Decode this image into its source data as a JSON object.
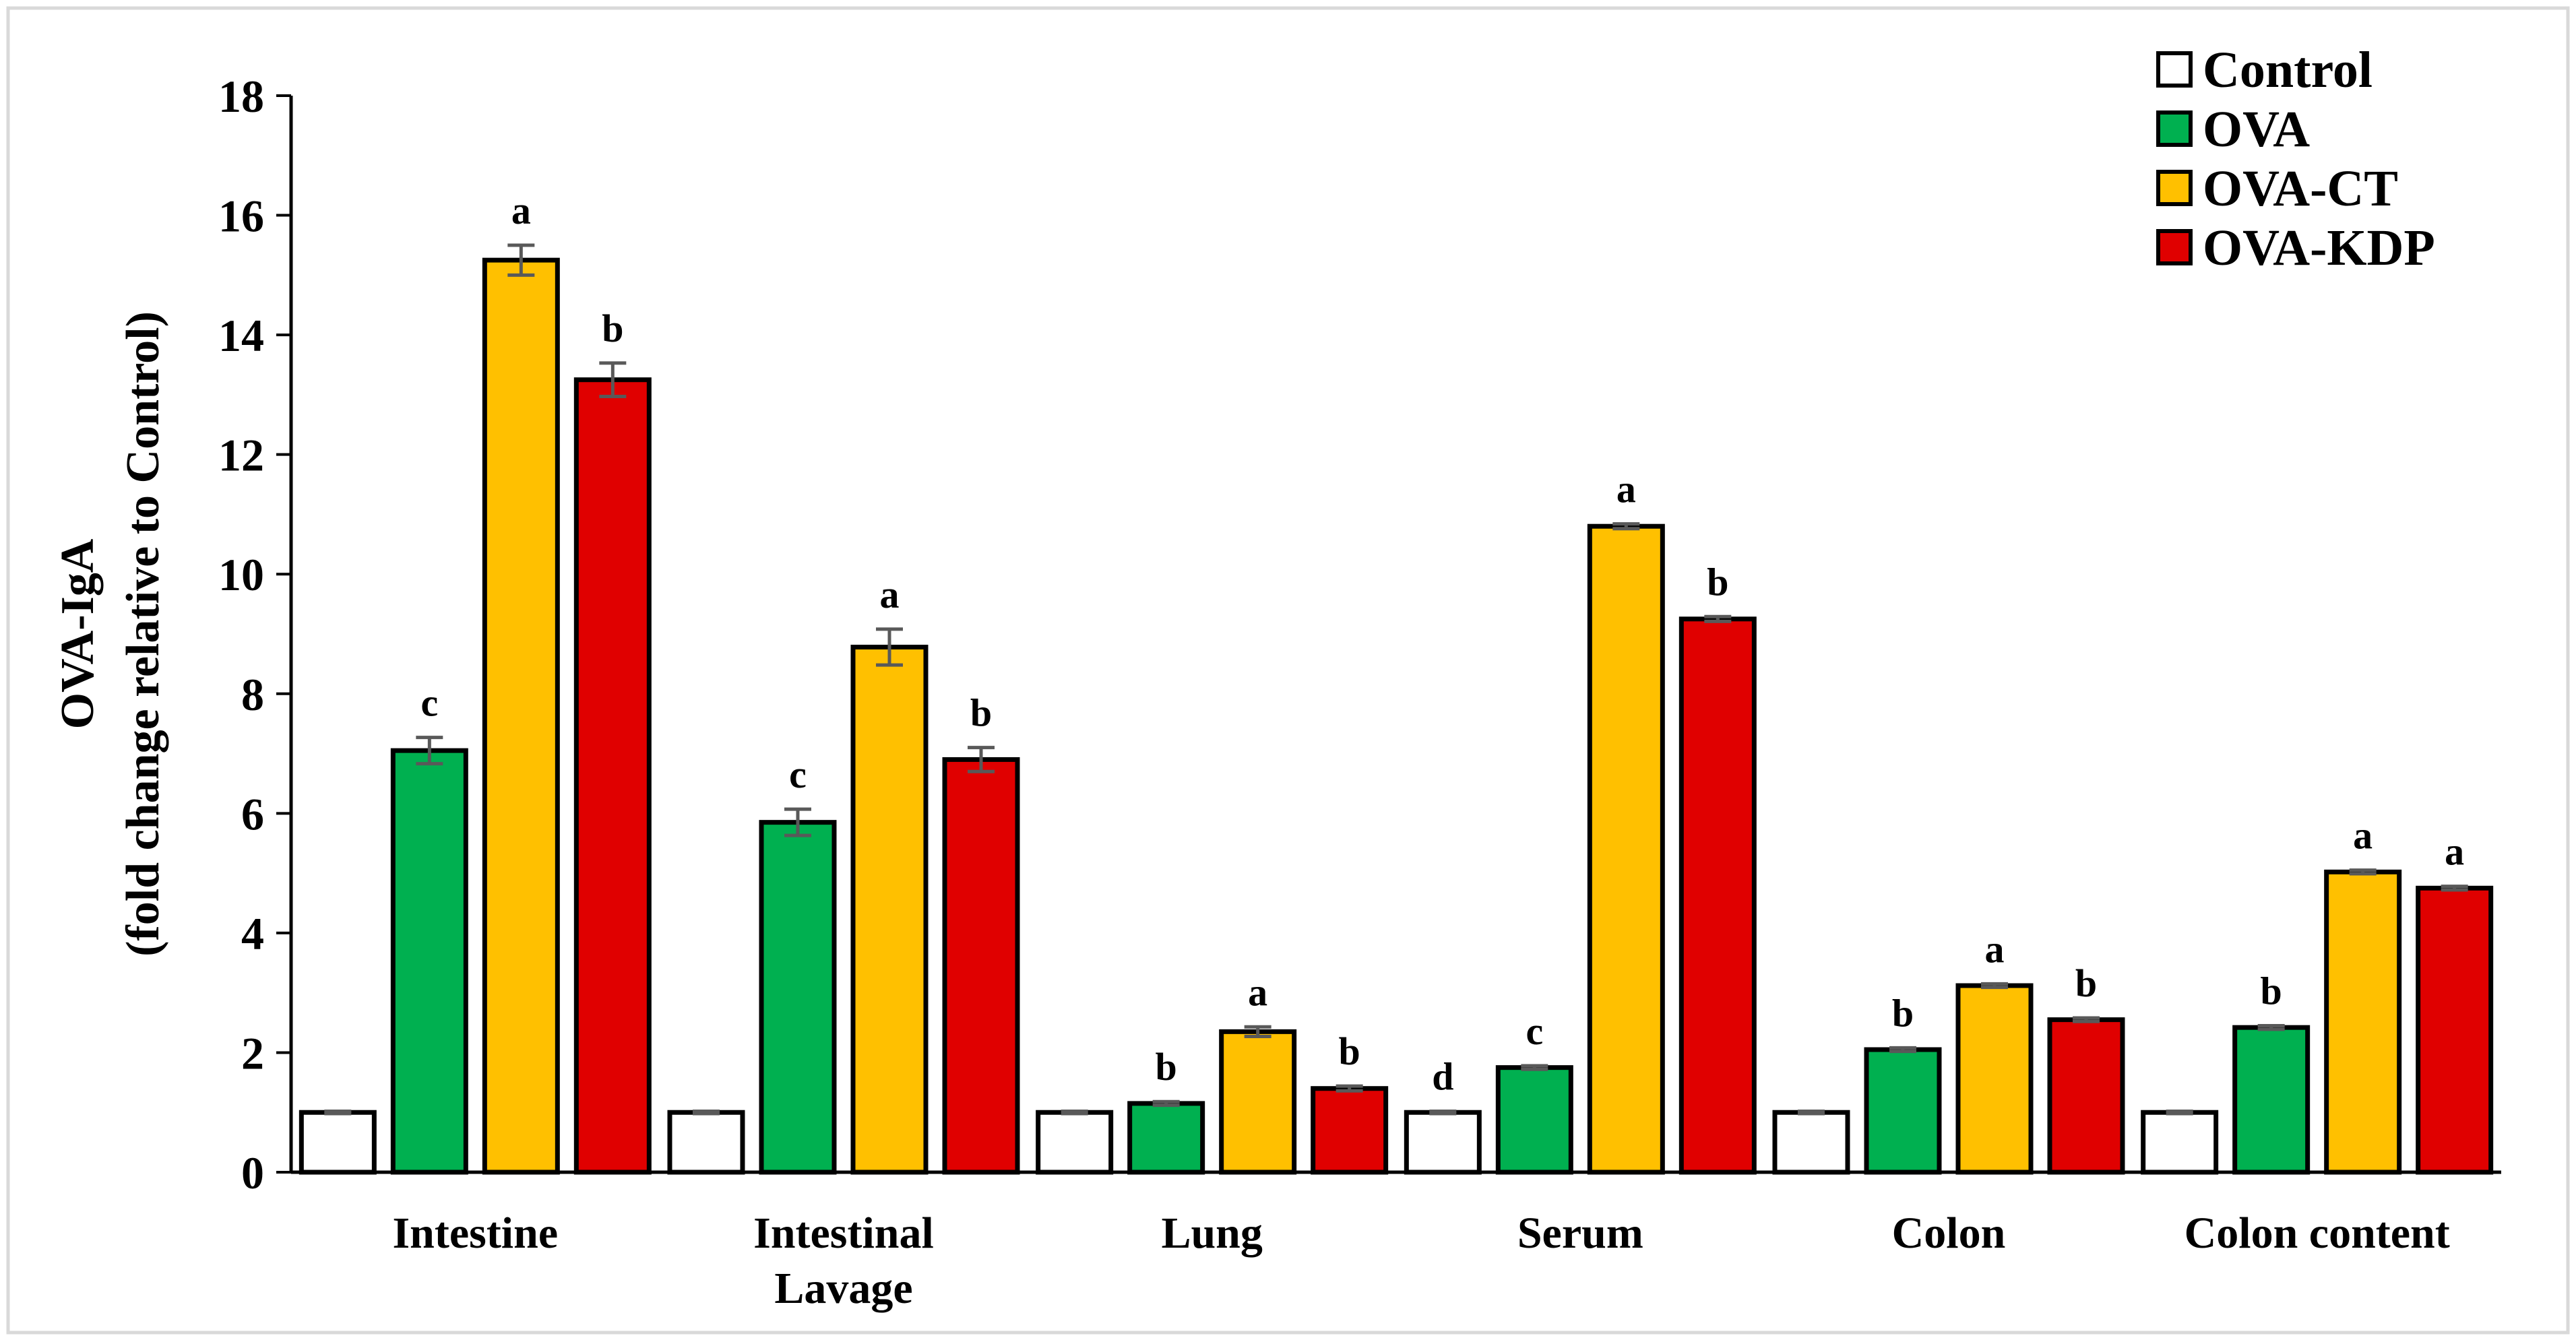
{
  "chart_data": {
    "type": "bar",
    "title": "",
    "xlabel": "",
    "ylabel_lines": [
      "OVA-IgA",
      "(fold change relative to Control)"
    ],
    "ylim": [
      0,
      18
    ],
    "yticks": [
      "0",
      "2",
      "4",
      "6",
      "8",
      "10",
      "12",
      "14",
      "16",
      "18"
    ],
    "grid": false,
    "legend_position": "top-right",
    "categories": [
      [
        "Intestine"
      ],
      [
        "Intestinal",
        "Lavage"
      ],
      [
        "Lung"
      ],
      [
        "Serum"
      ],
      [
        "Colon"
      ],
      [
        "Colon content"
      ]
    ],
    "series": [
      {
        "name": "Control",
        "color": "#ffffff",
        "values": [
          1.0,
          1.0,
          1.0,
          1.0,
          1.0,
          1.0
        ],
        "errors": [
          0.02,
          0.02,
          0.02,
          0.02,
          0.02,
          0.02
        ],
        "letters": [
          "",
          "",
          "",
          "d",
          "",
          ""
        ]
      },
      {
        "name": "OVA",
        "color": "#00b050",
        "values": [
          7.05,
          5.85,
          1.15,
          1.75,
          2.05,
          2.42
        ],
        "errors": [
          0.22,
          0.22,
          0.03,
          0.03,
          0.03,
          0.03
        ],
        "letters": [
          "c",
          "c",
          "b",
          "c",
          "b",
          "b"
        ]
      },
      {
        "name": "OVA-CT",
        "color": "#ffc000",
        "values": [
          15.25,
          8.78,
          2.35,
          10.8,
          3.12,
          5.02
        ],
        "errors": [
          0.25,
          0.3,
          0.08,
          0.04,
          0.03,
          0.03
        ],
        "letters": [
          "a",
          "a",
          "a",
          "a",
          "a",
          "a"
        ]
      },
      {
        "name": "OVA-KDP",
        "color": "#e00000",
        "values": [
          13.25,
          6.9,
          1.4,
          9.25,
          2.55,
          4.75
        ],
        "errors": [
          0.28,
          0.2,
          0.04,
          0.04,
          0.03,
          0.03
        ],
        "letters": [
          "b",
          "b",
          "b",
          "b",
          "b",
          "a"
        ]
      }
    ]
  }
}
